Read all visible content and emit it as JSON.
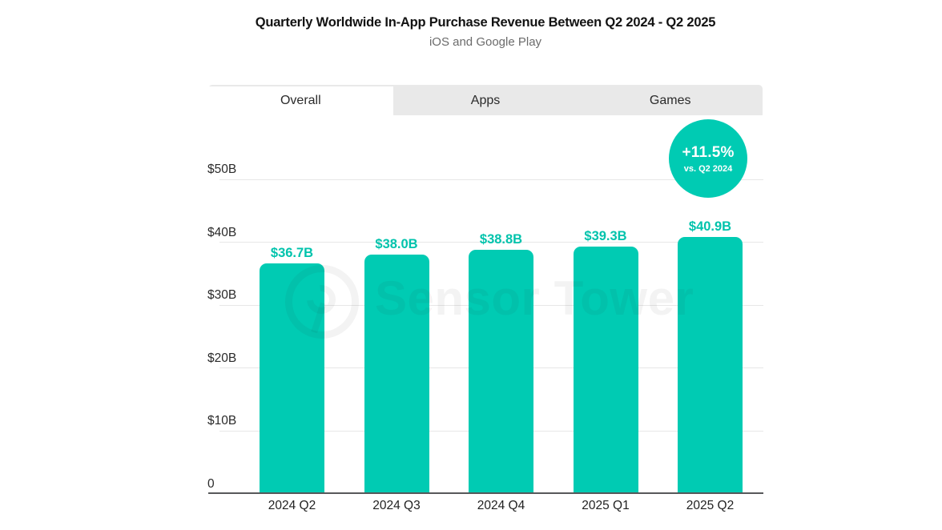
{
  "header": {
    "title": "Quarterly Worldwide In-App Purchase Revenue Between Q2 2024 - Q2 2025",
    "subtitle": "iOS and Google Play"
  },
  "tabs": [
    {
      "label": "Overall",
      "active": true
    },
    {
      "label": "Apps",
      "active": false
    },
    {
      "label": "Games",
      "active": false
    }
  ],
  "badge": {
    "value": "+11.5%",
    "caption": "vs. Q2 2024",
    "color": "#00cbb3"
  },
  "watermark": {
    "text": "Sensor Tower",
    "logo": "sensor-tower-ring-logo"
  },
  "colors": {
    "bar": "#00cbb3",
    "bar_label": "#00c3ac",
    "grid": "#e7e7e7",
    "axis": "#57585a",
    "tab_bg": "#e9e9e9"
  },
  "chart_data": {
    "type": "bar",
    "title": "Quarterly Worldwide In-App Purchase Revenue Between Q2 2024 - Q2 2025",
    "subtitle": "iOS and Google Play",
    "xlabel": "",
    "ylabel": "",
    "categories": [
      "2024 Q2",
      "2024 Q3",
      "2024 Q4",
      "2025 Q1",
      "2025 Q2"
    ],
    "values": [
      36.7,
      38.0,
      38.8,
      39.3,
      40.9
    ],
    "value_labels": [
      "$36.7B",
      "$38.0B",
      "$38.8B",
      "$39.3B",
      "$40.9B"
    ],
    "unit": "USD billions",
    "ylim": [
      0,
      50
    ],
    "y_ticks": [
      {
        "label": "$50B",
        "value": 50
      },
      {
        "label": "$40B",
        "value": 40
      },
      {
        "label": "$30B",
        "value": 30
      },
      {
        "label": "$20B",
        "value": 20
      },
      {
        "label": "$10B",
        "value": 10
      },
      {
        "label": "0",
        "value": 0
      }
    ],
    "grid": true,
    "legend": false,
    "bar_color": "#00cbb3",
    "annotation": {
      "text": "+11.5%",
      "sub_text": "vs. Q2 2024"
    }
  }
}
